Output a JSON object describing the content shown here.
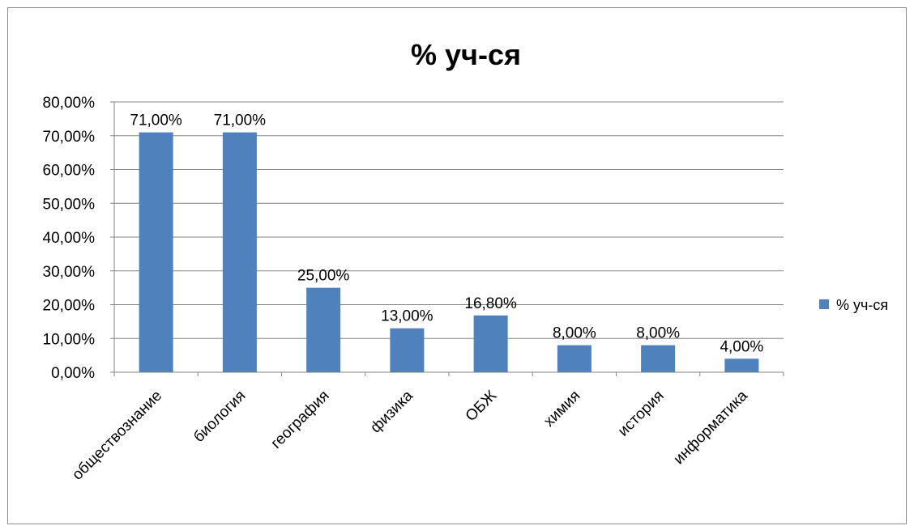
{
  "chart_data": {
    "type": "bar",
    "title": "% уч-ся",
    "categories": [
      "обществознание",
      "биология",
      "география",
      "физика",
      "ОБЖ",
      "химия",
      "история",
      "информатика"
    ],
    "series": [
      {
        "name": "% уч-ся",
        "values": [
          71.0,
          71.0,
          25.0,
          13.0,
          16.8,
          8.0,
          8.0,
          4.0
        ],
        "data_labels": [
          "71,00%",
          "71,00%",
          "25,00%",
          "13,00%",
          "16,80%",
          "8,00%",
          "8,00%",
          "4,00%"
        ],
        "color": "#4F81BD"
      }
    ],
    "ylim": [
      0,
      80
    ],
    "y_ticks": [
      "0,00%",
      "10,00%",
      "20,00%",
      "30,00%",
      "40,00%",
      "50,00%",
      "60,00%",
      "70,00%",
      "80,00%"
    ],
    "xlabel": "",
    "ylabel": "",
    "grid": true,
    "legend_position": "right"
  }
}
